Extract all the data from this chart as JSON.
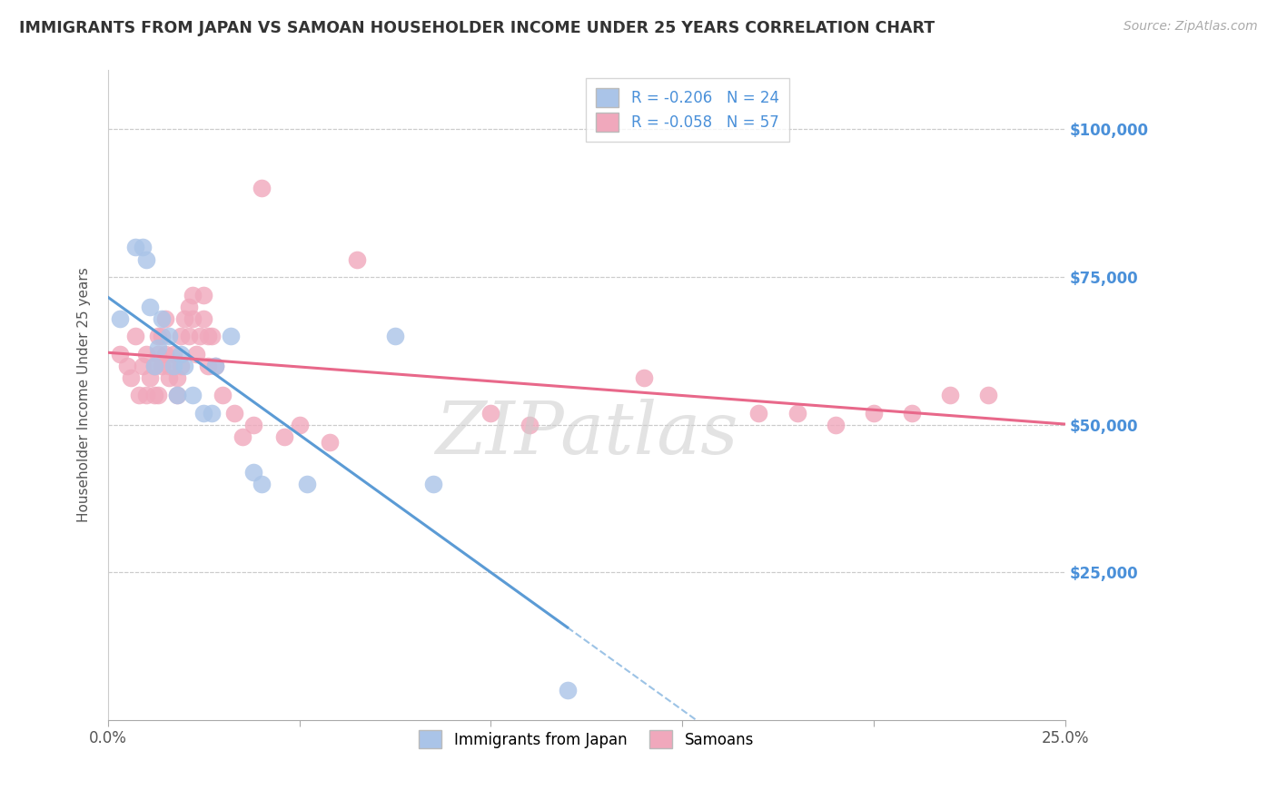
{
  "title": "IMMIGRANTS FROM JAPAN VS SAMOAN HOUSEHOLDER INCOME UNDER 25 YEARS CORRELATION CHART",
  "source": "Source: ZipAtlas.com",
  "ylabel": "Householder Income Under 25 years",
  "ytick_labels": [
    "$25,000",
    "$50,000",
    "$75,000",
    "$100,000"
  ],
  "ytick_values": [
    25000,
    50000,
    75000,
    100000
  ],
  "xlim": [
    0.0,
    0.25
  ],
  "ylim": [
    0,
    110000
  ],
  "color_japan": "#aac4e8",
  "color_samoan": "#f0a8bc",
  "line_color_japan": "#5b9bd5",
  "line_color_samoan": "#e8688a",
  "watermark": "ZIPatlas",
  "japan_x": [
    0.003,
    0.007,
    0.009,
    0.01,
    0.011,
    0.012,
    0.013,
    0.014,
    0.016,
    0.017,
    0.018,
    0.019,
    0.02,
    0.022,
    0.025,
    0.027,
    0.028,
    0.032,
    0.038,
    0.04,
    0.052,
    0.075,
    0.085,
    0.12
  ],
  "japan_y": [
    68000,
    80000,
    80000,
    78000,
    70000,
    60000,
    63000,
    68000,
    65000,
    60000,
    55000,
    62000,
    60000,
    55000,
    52000,
    52000,
    60000,
    65000,
    42000,
    40000,
    40000,
    65000,
    40000,
    5000
  ],
  "samoan_x": [
    0.003,
    0.005,
    0.006,
    0.007,
    0.008,
    0.009,
    0.01,
    0.01,
    0.011,
    0.012,
    0.012,
    0.013,
    0.013,
    0.013,
    0.014,
    0.014,
    0.015,
    0.015,
    0.016,
    0.016,
    0.017,
    0.018,
    0.018,
    0.019,
    0.019,
    0.02,
    0.021,
    0.021,
    0.022,
    0.022,
    0.023,
    0.024,
    0.025,
    0.025,
    0.026,
    0.026,
    0.027,
    0.028,
    0.03,
    0.033,
    0.035,
    0.038,
    0.04,
    0.046,
    0.05,
    0.058,
    0.065,
    0.1,
    0.11,
    0.14,
    0.17,
    0.18,
    0.19,
    0.2,
    0.21,
    0.22,
    0.23
  ],
  "samoan_y": [
    62000,
    60000,
    58000,
    65000,
    55000,
    60000,
    62000,
    55000,
    58000,
    55000,
    60000,
    62000,
    55000,
    65000,
    60000,
    65000,
    62000,
    68000,
    58000,
    60000,
    62000,
    55000,
    58000,
    60000,
    65000,
    68000,
    70000,
    65000,
    72000,
    68000,
    62000,
    65000,
    68000,
    72000,
    60000,
    65000,
    65000,
    60000,
    55000,
    52000,
    48000,
    50000,
    90000,
    48000,
    50000,
    47000,
    78000,
    52000,
    50000,
    58000,
    52000,
    52000,
    50000,
    52000,
    52000,
    55000,
    55000
  ],
  "legend_R_japan": "-0.206",
  "legend_N_japan": "24",
  "legend_R_samoan": "-0.058",
  "legend_N_samoan": "57"
}
